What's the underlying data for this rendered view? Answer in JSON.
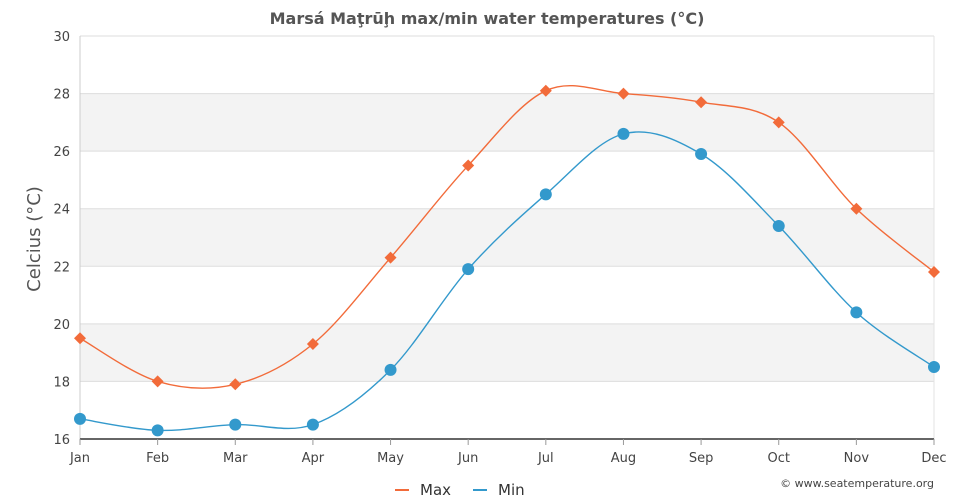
{
  "chart_data": {
    "type": "line",
    "title": "Marsá Maţrūḩ max/min water temperatures (°C)",
    "ylabel": "Celcius (°C)",
    "xlabel": "",
    "categories": [
      "Jan",
      "Feb",
      "Mar",
      "Apr",
      "May",
      "Jun",
      "Jul",
      "Aug",
      "Sep",
      "Oct",
      "Nov",
      "Dec"
    ],
    "ylim": [
      16,
      30
    ],
    "yticks": [
      "16",
      "18",
      "20",
      "22",
      "24",
      "26",
      "28",
      "30"
    ],
    "grid": true,
    "legend_position": "bottom-center",
    "series": [
      {
        "name": "Max",
        "values": [
          19.5,
          18.0,
          17.9,
          19.3,
          22.3,
          25.5,
          28.1,
          28.0,
          27.7,
          27.0,
          24.0,
          21.8
        ],
        "color": "#f26b3a",
        "marker": "diamond"
      },
      {
        "name": "Min",
        "values": [
          16.7,
          16.3,
          16.5,
          16.5,
          18.4,
          21.9,
          24.5,
          26.6,
          25.9,
          23.4,
          20.4,
          18.5
        ],
        "color": "#3399cc",
        "marker": "circle"
      }
    ]
  },
  "credit": "© www.seatemperature.org",
  "colors": {
    "band": "#f3f3f3",
    "gridline": "#dddddd",
    "axis": "#666666"
  }
}
